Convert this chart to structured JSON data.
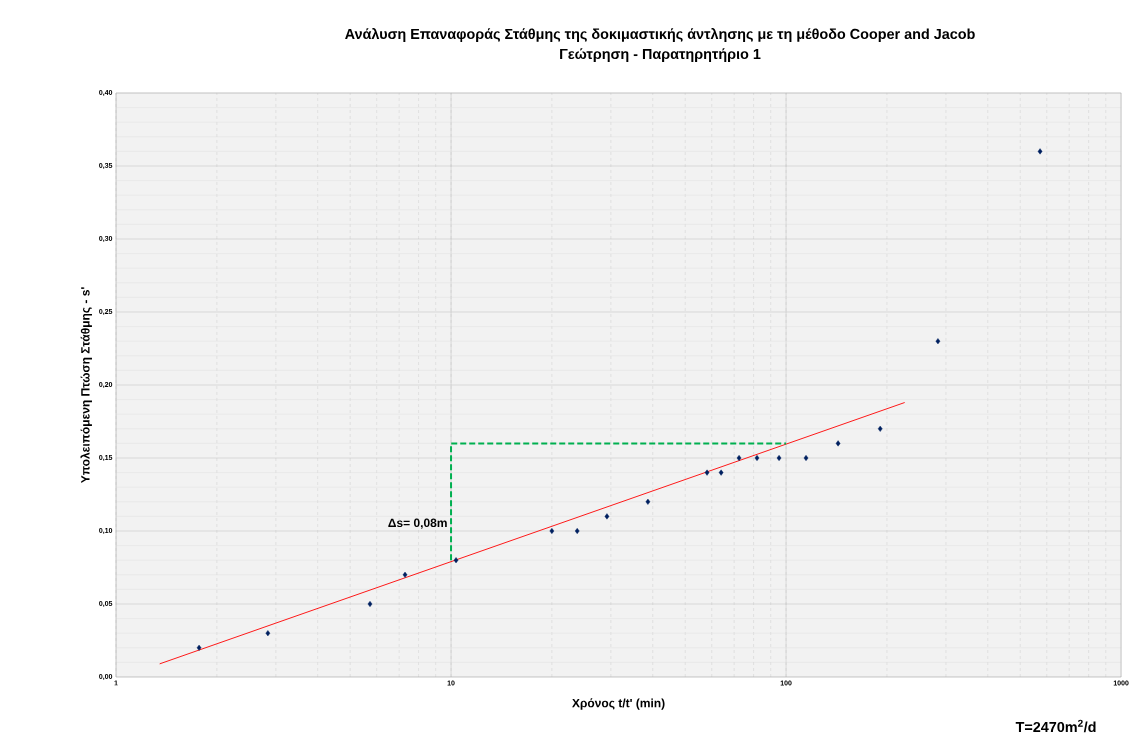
{
  "chart_data": {
    "type": "scatter",
    "title": "Ανάλυση Επαναφοράς Στάθμης της δοκιμαστικής άντλησης με τη μέθοδο Cooper and Jacob",
    "subtitle": "Γεώτρηση - Παρατηρητήριο 1",
    "xlabel": "Χρόνος t/t' (min)",
    "ylabel": "Υπολειπόμενη Πτώση Στάθμης - s'",
    "log": "x",
    "grid": true,
    "xlim": [
      1,
      1000
    ],
    "ylim": [
      0,
      0.4
    ],
    "xticks": [
      1,
      10,
      100,
      1000
    ],
    "yticks": [
      {
        "value": 0,
        "label": "0,00"
      },
      {
        "value": 0.05,
        "label": "0,05"
      },
      {
        "value": 0.1,
        "label": "0,10"
      },
      {
        "value": 0.15,
        "label": "0,15"
      },
      {
        "value": 0.2,
        "label": "0,20"
      },
      {
        "value": 0.25,
        "label": "0,25"
      },
      {
        "value": 0.3,
        "label": "0,30"
      },
      {
        "value": 0.35,
        "label": "0,35"
      },
      {
        "value": 0.4,
        "label": "0,40"
      }
    ],
    "series": [
      {
        "color": "#002060",
        "marker": "diamond",
        "x": [
          1.77,
          2.84,
          5.73,
          7.29,
          10.35,
          20.0,
          23.8,
          29.2,
          38.7,
          58.1,
          64,
          72.4,
          81.9,
          95.3,
          114.7,
          143,
          191,
          284,
          573
        ],
        "values": [
          0.02,
          0.03,
          0.05,
          0.07,
          0.08,
          0.1,
          0.1,
          0.11,
          0.12,
          0.14,
          0.14,
          0.15,
          0.15,
          0.15,
          0.15,
          0.16,
          0.17,
          0.23,
          0.36
        ]
      },
      {
        "type": "line",
        "color": "#ff0000",
        "line_style": "solid",
        "x": [
          1.35,
          226
        ],
        "values": [
          0.009,
          0.188
        ]
      },
      {
        "type": "line",
        "color": "#00b050",
        "line_style": "dashed",
        "x": [
          10,
          10,
          100
        ],
        "values": [
          0.08,
          0.16,
          0.16
        ]
      }
    ],
    "annotations": [
      {
        "text": "Δs= 0,08m",
        "x": 10,
        "y": 0.105
      },
      "T=2470m$^{2}$/d"
    ]
  }
}
